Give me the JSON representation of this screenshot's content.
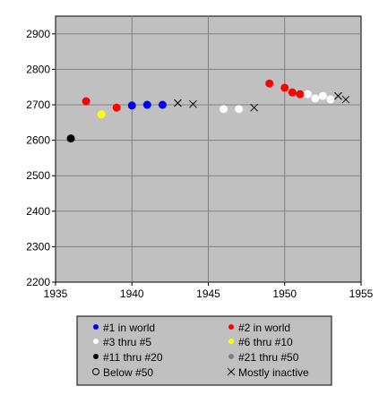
{
  "chart_data": {
    "type": "scatter",
    "title": "",
    "xlabel": "",
    "ylabel": "",
    "xlim": [
      1935,
      1955
    ],
    "ylim": [
      2200,
      2950
    ],
    "x_ticks": [
      1935,
      1940,
      1945,
      1950,
      1955
    ],
    "y_ticks": [
      2200,
      2300,
      2400,
      2500,
      2600,
      2700,
      2800,
      2900
    ],
    "grid": true,
    "plot_background": "#c0c0c0",
    "legend_position": "bottom",
    "series": [
      {
        "name": "#1 in world",
        "marker": "dot",
        "color": "#0000ff",
        "points": [
          [
            1940,
            2698
          ],
          [
            1941,
            2700
          ],
          [
            1942,
            2700
          ]
        ]
      },
      {
        "name": "#2 in world",
        "marker": "dot",
        "color": "#ff0000",
        "points": [
          [
            1937,
            2710
          ],
          [
            1939,
            2692
          ],
          [
            1949,
            2760
          ],
          [
            1950,
            2748
          ],
          [
            1950.5,
            2735
          ],
          [
            1951,
            2730
          ]
        ]
      },
      {
        "name": "#3 thru #5",
        "marker": "dot",
        "color": "#ffffff",
        "points": [
          [
            1946,
            2688
          ],
          [
            1947,
            2688
          ],
          [
            1951.5,
            2730
          ],
          [
            1952,
            2718
          ],
          [
            1952.5,
            2725
          ],
          [
            1953,
            2715
          ]
        ]
      },
      {
        "name": "#6 thru #10",
        "marker": "dot",
        "color": "#ffff00",
        "points": [
          [
            1938,
            2673
          ]
        ]
      },
      {
        "name": "#11 thru #20",
        "marker": "dot",
        "color": "#000000",
        "points": [
          [
            1936,
            2605
          ]
        ]
      },
      {
        "name": "#21 thru #50",
        "marker": "dot",
        "color": "#808080",
        "points": []
      },
      {
        "name": "Below #50",
        "marker": "circle",
        "color": "#000000",
        "points": []
      },
      {
        "name": "Mostly inactive",
        "marker": "x",
        "color": "#000000",
        "points": [
          [
            1943,
            2705
          ],
          [
            1944,
            2702
          ],
          [
            1948,
            2692
          ],
          [
            1953.5,
            2725
          ],
          [
            1954,
            2715
          ]
        ]
      }
    ]
  }
}
